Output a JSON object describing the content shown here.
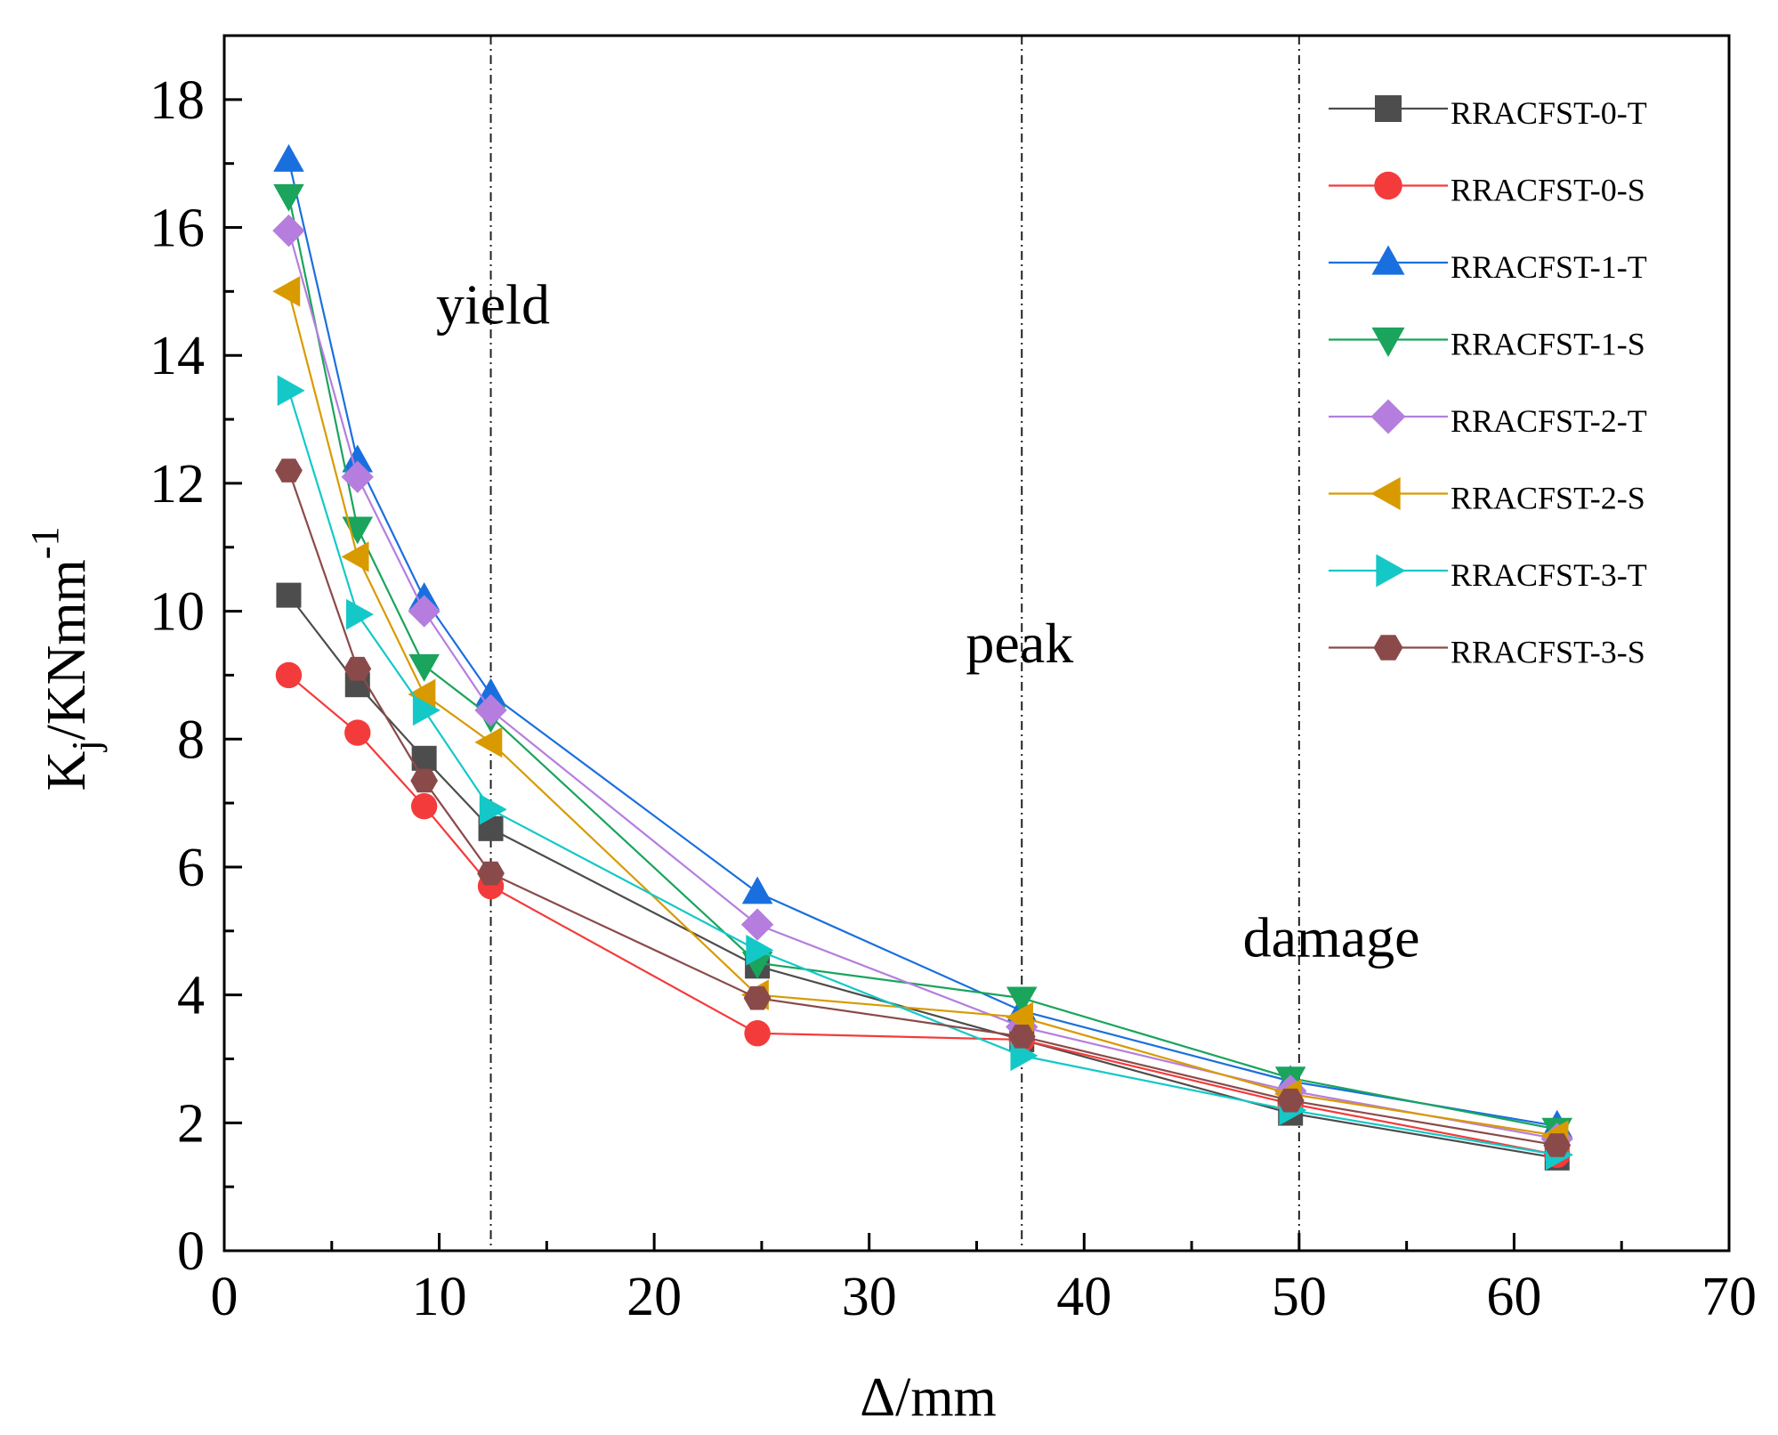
{
  "chart_data": {
    "type": "line",
    "title": "",
    "xlabel": "Δ/mm",
    "ylabel": {
      "base": "K",
      "sub": "j",
      "mid": "/KNmm",
      "sup": "-1"
    },
    "xlim": [
      0,
      70
    ],
    "ylim": [
      0,
      19
    ],
    "x_ticks": [
      0,
      10,
      20,
      30,
      40,
      50,
      60,
      70
    ],
    "y_ticks": [
      0,
      2,
      4,
      6,
      8,
      10,
      12,
      14,
      16,
      18
    ],
    "grid": false,
    "legend_position": "top-right",
    "x": [
      3,
      6.2,
      9.3,
      12.4,
      24.8,
      37.1,
      49.6,
      62
    ],
    "series": [
      {
        "name": "RRACFST-0-T",
        "marker": "square",
        "color": "#4d4d4d",
        "values": [
          10.25,
          8.85,
          7.7,
          6.6,
          4.45,
          3.3,
          2.15,
          1.45
        ]
      },
      {
        "name": "RRACFST-0-S",
        "marker": "circle",
        "color": "#f43b3b",
        "values": [
          9.0,
          8.1,
          6.95,
          5.7,
          3.4,
          3.3,
          2.3,
          1.5
        ]
      },
      {
        "name": "RRACFST-1-T",
        "marker": "triangle-up",
        "color": "#1a6fdf",
        "values": [
          17.05,
          12.35,
          10.2,
          8.7,
          5.6,
          3.75,
          2.65,
          1.95
        ]
      },
      {
        "name": "RRACFST-1-S",
        "marker": "triangle-down",
        "color": "#1aa45c",
        "values": [
          16.5,
          11.3,
          9.15,
          8.35,
          4.5,
          3.95,
          2.7,
          1.9
        ]
      },
      {
        "name": "RRACFST-2-T",
        "marker": "diamond",
        "color": "#b57ede",
        "values": [
          15.95,
          12.1,
          10.0,
          8.45,
          5.1,
          3.5,
          2.5,
          1.75
        ]
      },
      {
        "name": "RRACFST-2-S",
        "marker": "triangle-left",
        "color": "#d99a00",
        "values": [
          15.0,
          10.85,
          8.7,
          7.95,
          4.0,
          3.65,
          2.45,
          1.8
        ]
      },
      {
        "name": "RRACFST-3-T",
        "marker": "triangle-right",
        "color": "#14c8c8",
        "values": [
          13.45,
          9.95,
          8.45,
          6.9,
          4.7,
          3.05,
          2.2,
          1.5
        ]
      },
      {
        "name": "RRACFST-3-S",
        "marker": "hexagon",
        "color": "#8b4a4a",
        "values": [
          12.2,
          9.1,
          7.35,
          5.9,
          3.95,
          3.35,
          2.35,
          1.65
        ]
      }
    ],
    "vlines": [
      12.4,
      37.1,
      50
    ],
    "annotations": [
      {
        "text": "yield",
        "x": 12.5,
        "y": 14.5
      },
      {
        "text": "peak",
        "x": 37.0,
        "y": 9.2
      },
      {
        "text": "damage",
        "x": 51.5,
        "y": 4.6
      }
    ]
  }
}
